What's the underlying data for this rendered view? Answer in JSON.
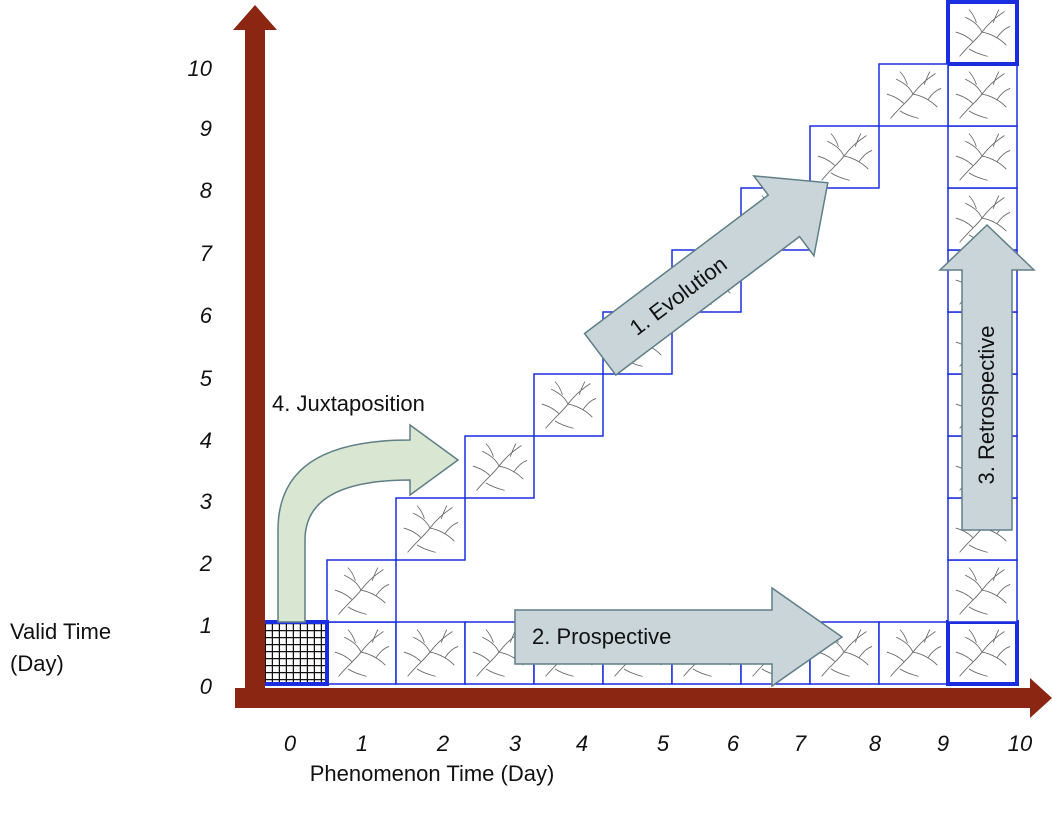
{
  "y_axis": {
    "label_line1": "Valid Time",
    "label_line2": "(Day)",
    "ticks": [
      "0",
      "1",
      "2",
      "3",
      "4",
      "5",
      "6",
      "7",
      "8",
      "9",
      "10"
    ]
  },
  "x_axis": {
    "label": "Phenomenon Time (Day)",
    "ticks": [
      "0",
      "1",
      "2",
      "3",
      "4",
      "5",
      "6",
      "7",
      "8",
      "9",
      "10"
    ]
  },
  "arrows": {
    "evolution": "1.    Evolution",
    "prospective": "2.   Prospective",
    "retrospective": "3.   Retrospective",
    "juxtaposition": "4. Juxtaposition"
  }
}
